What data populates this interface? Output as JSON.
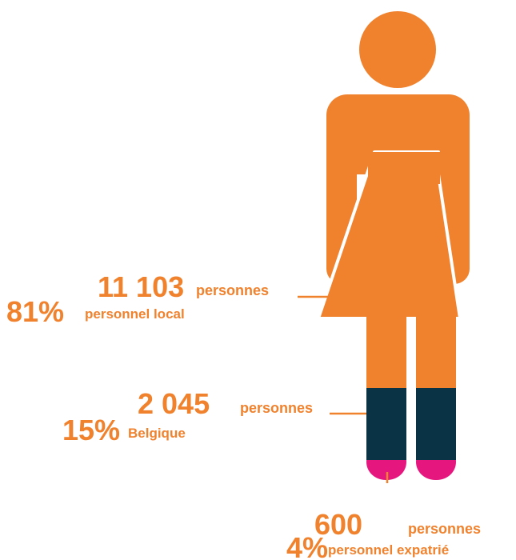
{
  "groups": [
    {
      "percent": "81%",
      "count": "11 103",
      "unit": "personnes",
      "label": "personnel local"
    },
    {
      "percent": "15%",
      "count": "2 045",
      "unit": "personnes",
      "label": "Belgique"
    },
    {
      "percent": "4%",
      "count": "600",
      "unit": "personnes",
      "label": "personnel expatrié"
    }
  ]
}
